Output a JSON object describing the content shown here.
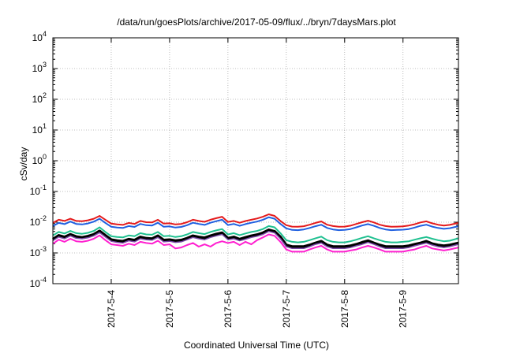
{
  "chart_data": {
    "type": "line",
    "title": "/data/run/goesPlots/archive/2017-05-09/flux/../bryn/7daysMars.plot",
    "xlabel": "Coordinated Universal Time (UTC)",
    "ylabel": "cSv/day",
    "yscale": "log",
    "ylim": [
      0.0001,
      10000
    ],
    "xlim": [
      3.0,
      9.95
    ],
    "y_ticks": [
      {
        "base": "10",
        "exp": "-4"
      },
      {
        "base": "10",
        "exp": "-3"
      },
      {
        "base": "10",
        "exp": "-2"
      },
      {
        "base": "10",
        "exp": "-1"
      },
      {
        "base": "10",
        "exp": "0"
      },
      {
        "base": "10",
        "exp": "1"
      },
      {
        "base": "10",
        "exp": "2"
      },
      {
        "base": "10",
        "exp": "3"
      },
      {
        "base": "10",
        "exp": "4"
      }
    ],
    "x_ticks": [
      {
        "x": 4,
        "label": "2017-5-4"
      },
      {
        "x": 5,
        "label": "2017-5-5"
      },
      {
        "x": 6,
        "label": "2017-5-6"
      },
      {
        "x": 7,
        "label": "2017-5-7"
      },
      {
        "x": 8,
        "label": "2017-5-8"
      },
      {
        "x": 9,
        "label": "2017-5-9"
      }
    ],
    "grid": true,
    "legend": "none",
    "x": [
      3.0,
      3.1,
      3.2,
      3.3,
      3.4,
      3.5,
      3.6,
      3.7,
      3.8,
      3.9,
      4.0,
      4.1,
      4.2,
      4.3,
      4.4,
      4.5,
      4.6,
      4.7,
      4.8,
      4.9,
      5.0,
      5.1,
      5.2,
      5.3,
      5.4,
      5.5,
      5.6,
      5.7,
      5.8,
      5.9,
      6.0,
      6.1,
      6.2,
      6.3,
      6.4,
      6.5,
      6.6,
      6.7,
      6.8,
      6.9,
      7.0,
      7.1,
      7.2,
      7.3,
      7.4,
      7.5,
      7.6,
      7.7,
      7.8,
      7.9,
      8.0,
      8.1,
      8.2,
      8.3,
      8.4,
      8.5,
      8.6,
      8.7,
      8.8,
      8.9,
      9.0,
      9.1,
      9.2,
      9.3,
      9.4,
      9.5,
      9.6,
      9.7,
      9.8,
      9.95
    ],
    "series": [
      {
        "color": "#e41a1c",
        "width": 2,
        "values": [
          0.0095,
          0.012,
          0.011,
          0.013,
          0.011,
          0.0108,
          0.0115,
          0.013,
          0.016,
          0.012,
          0.009,
          0.0085,
          0.0082,
          0.0095,
          0.0088,
          0.011,
          0.01,
          0.0098,
          0.012,
          0.009,
          0.0092,
          0.0085,
          0.0088,
          0.01,
          0.012,
          0.011,
          0.0103,
          0.012,
          0.0135,
          0.015,
          0.0102,
          0.011,
          0.0096,
          0.0109,
          0.012,
          0.0132,
          0.015,
          0.018,
          0.016,
          0.011,
          0.008,
          0.0072,
          0.0071,
          0.0074,
          0.0083,
          0.0095,
          0.0106,
          0.0083,
          0.0075,
          0.0071,
          0.0072,
          0.0077,
          0.0088,
          0.01,
          0.0112,
          0.0098,
          0.0083,
          0.0075,
          0.0071,
          0.0072,
          0.0073,
          0.0078,
          0.0086,
          0.0098,
          0.0107,
          0.0092,
          0.0083,
          0.0078,
          0.0082,
          0.0095
        ]
      },
      {
        "color": "#1f5fe0",
        "width": 2,
        "values": [
          0.0075,
          0.0095,
          0.0087,
          0.0105,
          0.0088,
          0.0085,
          0.0091,
          0.0104,
          0.013,
          0.0095,
          0.0071,
          0.0067,
          0.0065,
          0.0075,
          0.007,
          0.0088,
          0.008,
          0.0078,
          0.0096,
          0.0071,
          0.0073,
          0.0067,
          0.007,
          0.008,
          0.0096,
          0.0088,
          0.0082,
          0.0096,
          0.0108,
          0.012,
          0.0081,
          0.0088,
          0.0076,
          0.0087,
          0.0096,
          0.0105,
          0.012,
          0.0145,
          0.013,
          0.0088,
          0.0063,
          0.0056,
          0.0055,
          0.0058,
          0.0065,
          0.0074,
          0.0083,
          0.0065,
          0.0058,
          0.0055,
          0.0056,
          0.006,
          0.0068,
          0.0078,
          0.0087,
          0.0076,
          0.0065,
          0.0058,
          0.0055,
          0.0056,
          0.0057,
          0.006,
          0.0067,
          0.0076,
          0.0083,
          0.0072,
          0.0065,
          0.0061,
          0.0064,
          0.0074
        ]
      },
      {
        "color": "#1fc090",
        "width": 2,
        "values": [
          0.0037,
          0.0048,
          0.0043,
          0.0052,
          0.0044,
          0.0042,
          0.0045,
          0.0052,
          0.0068,
          0.0048,
          0.0035,
          0.0033,
          0.0032,
          0.0037,
          0.0035,
          0.0044,
          0.004,
          0.0039,
          0.0048,
          0.0035,
          0.0036,
          0.0033,
          0.0035,
          0.004,
          0.0048,
          0.0044,
          0.0041,
          0.0048,
          0.0054,
          0.006,
          0.004,
          0.0044,
          0.0038,
          0.0043,
          0.0048,
          0.0052,
          0.006,
          0.0075,
          0.0068,
          0.0044,
          0.0026,
          0.0023,
          0.0022,
          0.0023,
          0.0026,
          0.003,
          0.0034,
          0.0026,
          0.0023,
          0.0022,
          0.0022,
          0.0024,
          0.0027,
          0.0031,
          0.0035,
          0.003,
          0.0026,
          0.0023,
          0.0022,
          0.0022,
          0.0023,
          0.0024,
          0.0027,
          0.003,
          0.0033,
          0.0029,
          0.0026,
          0.0024,
          0.0025,
          0.003
        ]
      },
      {
        "color": "#000000",
        "width": 3.5,
        "values": [
          0.0028,
          0.0037,
          0.0033,
          0.004,
          0.0034,
          0.0032,
          0.0035,
          0.004,
          0.0052,
          0.0037,
          0.0027,
          0.0025,
          0.0024,
          0.0028,
          0.0026,
          0.0033,
          0.003,
          0.0029,
          0.0036,
          0.0026,
          0.0027,
          0.0025,
          0.0026,
          0.003,
          0.0036,
          0.0033,
          0.0031,
          0.0036,
          0.0041,
          0.0045,
          0.003,
          0.0033,
          0.0028,
          0.0032,
          0.0036,
          0.0039,
          0.0045,
          0.0056,
          0.005,
          0.0033,
          0.0018,
          0.0016,
          0.0016,
          0.0016,
          0.0018,
          0.0021,
          0.0024,
          0.0018,
          0.0016,
          0.0016,
          0.0016,
          0.0017,
          0.0019,
          0.0022,
          0.0025,
          0.0021,
          0.0018,
          0.0016,
          0.0016,
          0.0016,
          0.0016,
          0.0017,
          0.0019,
          0.0021,
          0.0024,
          0.002,
          0.0018,
          0.0017,
          0.0018,
          0.0021
        ]
      },
      {
        "color": "#7a4aa8",
        "width": 1.5,
        "values": [
          0.0025,
          0.0033,
          0.0029,
          0.0036,
          0.003,
          0.0029,
          0.0031,
          0.0036,
          0.0046,
          0.0033,
          0.0024,
          0.0022,
          0.0021,
          0.0025,
          0.0023,
          0.0029,
          0.0027,
          0.0026,
          0.0032,
          0.0023,
          0.0024,
          0.0022,
          0.0023,
          0.0027,
          0.0032,
          0.0029,
          0.0027,
          0.0032,
          0.0036,
          0.004,
          0.0027,
          0.0029,
          0.0025,
          0.0028,
          0.0032,
          0.0035,
          0.004,
          0.005,
          0.0045,
          0.0029,
          0.0016,
          0.0014,
          0.0014,
          0.0014,
          0.0016,
          0.0019,
          0.0021,
          0.0016,
          0.0014,
          0.0014,
          0.0014,
          0.0015,
          0.0017,
          0.0019,
          0.0022,
          0.0019,
          0.0016,
          0.0014,
          0.0014,
          0.0014,
          0.0014,
          0.0015,
          0.0017,
          0.0019,
          0.0021,
          0.0018,
          0.0016,
          0.0015,
          0.0016,
          0.0019
        ]
      },
      {
        "color": "#ff20d0",
        "width": 2,
        "values": [
          0.002,
          0.0027,
          0.0023,
          0.0029,
          0.0024,
          0.0023,
          0.0025,
          0.0029,
          0.0037,
          0.0026,
          0.0019,
          0.0018,
          0.0017,
          0.002,
          0.0018,
          0.0023,
          0.0021,
          0.002,
          0.0025,
          0.0018,
          0.0019,
          0.0014,
          0.0015,
          0.0018,
          0.0021,
          0.0016,
          0.0019,
          0.0016,
          0.0021,
          0.0024,
          0.0021,
          0.0023,
          0.0018,
          0.0023,
          0.0019,
          0.0026,
          0.0032,
          0.004,
          0.0036,
          0.0023,
          0.0013,
          0.0011,
          0.0011,
          0.0011,
          0.0013,
          0.0015,
          0.0017,
          0.0013,
          0.0011,
          0.0011,
          0.0011,
          0.0012,
          0.0013,
          0.0015,
          0.0017,
          0.0015,
          0.0013,
          0.0011,
          0.0011,
          0.0011,
          0.0011,
          0.0012,
          0.0013,
          0.0015,
          0.0017,
          0.0014,
          0.0013,
          0.0012,
          0.0013,
          0.0015
        ]
      }
    ]
  }
}
